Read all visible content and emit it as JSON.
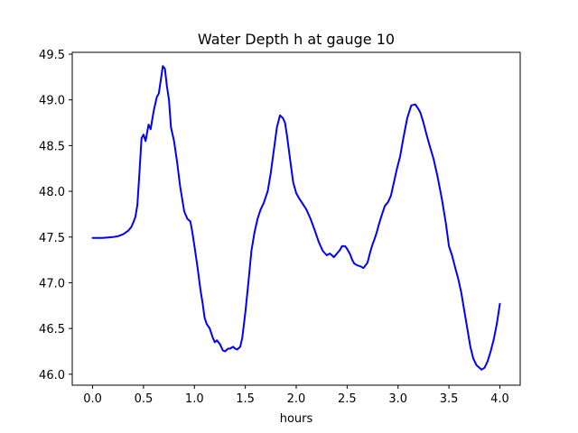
{
  "chart_data": {
    "type": "line",
    "title": "Water Depth h at gauge 10",
    "xlabel": "hours",
    "ylabel": "",
    "xlim": [
      -0.2,
      4.2
    ],
    "ylim": [
      45.88,
      49.52
    ],
    "xticks": [
      0.0,
      0.5,
      1.0,
      1.5,
      2.0,
      2.5,
      3.0,
      3.5,
      4.0
    ],
    "xtick_labels": [
      "0.0",
      "0.5",
      "1.0",
      "1.5",
      "2.0",
      "2.5",
      "3.0",
      "3.5",
      "4.0"
    ],
    "yticks": [
      46.0,
      46.5,
      47.0,
      47.5,
      48.0,
      48.5,
      49.0,
      49.5
    ],
    "ytick_labels": [
      "46.0",
      "46.5",
      "47.0",
      "47.5",
      "48.0",
      "48.5",
      "49.0",
      "49.5"
    ],
    "grid": false,
    "series": [
      {
        "color": "#0000ff",
        "x": [
          0.0,
          0.1,
          0.2,
          0.25,
          0.3,
          0.35,
          0.38,
          0.4,
          0.42,
          0.44,
          0.46,
          0.48,
          0.5,
          0.52,
          0.55,
          0.57,
          0.6,
          0.63,
          0.65,
          0.67,
          0.69,
          0.71,
          0.73,
          0.75,
          0.77,
          0.8,
          0.83,
          0.86,
          0.9,
          0.93,
          0.96,
          0.98,
          1.0,
          1.03,
          1.06,
          1.08,
          1.1,
          1.12,
          1.15,
          1.18,
          1.2,
          1.22,
          1.25,
          1.28,
          1.3,
          1.33,
          1.35,
          1.38,
          1.4,
          1.42,
          1.45,
          1.47,
          1.5,
          1.53,
          1.56,
          1.59,
          1.62,
          1.65,
          1.68,
          1.72,
          1.75,
          1.78,
          1.81,
          1.84,
          1.87,
          1.89,
          1.91,
          1.94,
          1.97,
          2.0,
          2.03,
          2.06,
          2.1,
          2.14,
          2.18,
          2.22,
          2.26,
          2.3,
          2.33,
          2.35,
          2.37,
          2.4,
          2.43,
          2.45,
          2.48,
          2.5,
          2.53,
          2.55,
          2.57,
          2.6,
          2.63,
          2.66,
          2.7,
          2.73,
          2.75,
          2.77,
          2.79,
          2.81,
          2.84,
          2.87,
          2.9,
          2.93,
          2.96,
          2.99,
          3.02,
          3.05,
          3.09,
          3.13,
          3.17,
          3.2,
          3.22,
          3.25,
          3.28,
          3.31,
          3.35,
          3.39,
          3.43,
          3.47,
          3.5,
          3.53,
          3.56,
          3.59,
          3.62,
          3.65,
          3.68,
          3.71,
          3.74,
          3.77,
          3.8,
          3.82,
          3.85,
          3.88,
          3.91,
          3.94,
          3.97,
          4.0
        ],
        "y": [
          47.49,
          47.49,
          47.5,
          47.51,
          47.53,
          47.57,
          47.61,
          47.66,
          47.72,
          47.85,
          48.2,
          48.58,
          48.62,
          48.55,
          48.73,
          48.68,
          48.88,
          49.03,
          49.07,
          49.22,
          49.37,
          49.34,
          49.15,
          49.0,
          48.7,
          48.55,
          48.32,
          48.05,
          47.78,
          47.7,
          47.67,
          47.55,
          47.4,
          47.17,
          46.92,
          46.78,
          46.62,
          46.55,
          46.5,
          46.4,
          46.35,
          46.37,
          46.33,
          46.26,
          46.25,
          46.28,
          46.28,
          46.3,
          46.28,
          46.27,
          46.3,
          46.4,
          46.67,
          47.0,
          47.35,
          47.55,
          47.7,
          47.8,
          47.87,
          48.0,
          48.2,
          48.45,
          48.7,
          48.83,
          48.8,
          48.75,
          48.6,
          48.35,
          48.1,
          47.98,
          47.92,
          47.87,
          47.8,
          47.7,
          47.58,
          47.45,
          47.35,
          47.3,
          47.32,
          47.3,
          47.28,
          47.32,
          47.36,
          47.4,
          47.4,
          47.37,
          47.31,
          47.25,
          47.21,
          47.19,
          47.18,
          47.16,
          47.22,
          47.35,
          47.42,
          47.48,
          47.55,
          47.63,
          47.74,
          47.84,
          47.88,
          47.95,
          48.1,
          48.25,
          48.38,
          48.57,
          48.8,
          48.94,
          48.95,
          48.9,
          48.86,
          48.75,
          48.62,
          48.5,
          48.35,
          48.15,
          47.92,
          47.65,
          47.4,
          47.3,
          47.17,
          47.05,
          46.9,
          46.7,
          46.5,
          46.3,
          46.17,
          46.1,
          46.07,
          46.05,
          46.07,
          46.14,
          46.25,
          46.38,
          46.55,
          46.77
        ]
      }
    ]
  }
}
